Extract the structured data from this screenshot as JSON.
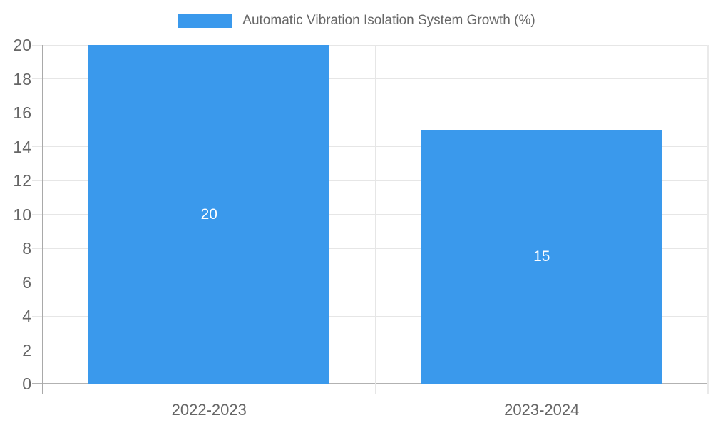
{
  "legend": {
    "label": "Automatic Vibration Isolation System Growth (%)"
  },
  "chart_data": {
    "type": "bar",
    "title": "Automatic Vibration Isolation System Growth (%)",
    "categories": [
      "2022-2023",
      "2023-2024"
    ],
    "values": [
      20,
      15
    ],
    "bar_labels": [
      "20",
      "15"
    ],
    "y_ticks": [
      0,
      2,
      4,
      6,
      8,
      10,
      12,
      14,
      16,
      18,
      20
    ],
    "ylim": [
      0,
      20
    ],
    "xlabel": "",
    "ylabel": "",
    "grid": true,
    "legend_position": "top",
    "colors": {
      "bar": "#3A99EC",
      "bar_label": "#ffffff",
      "axis_text": "#666666",
      "gridline": "#e6e6e6",
      "axis_line": "#a9a9a9",
      "zero_line": "#b2b2b2"
    }
  }
}
